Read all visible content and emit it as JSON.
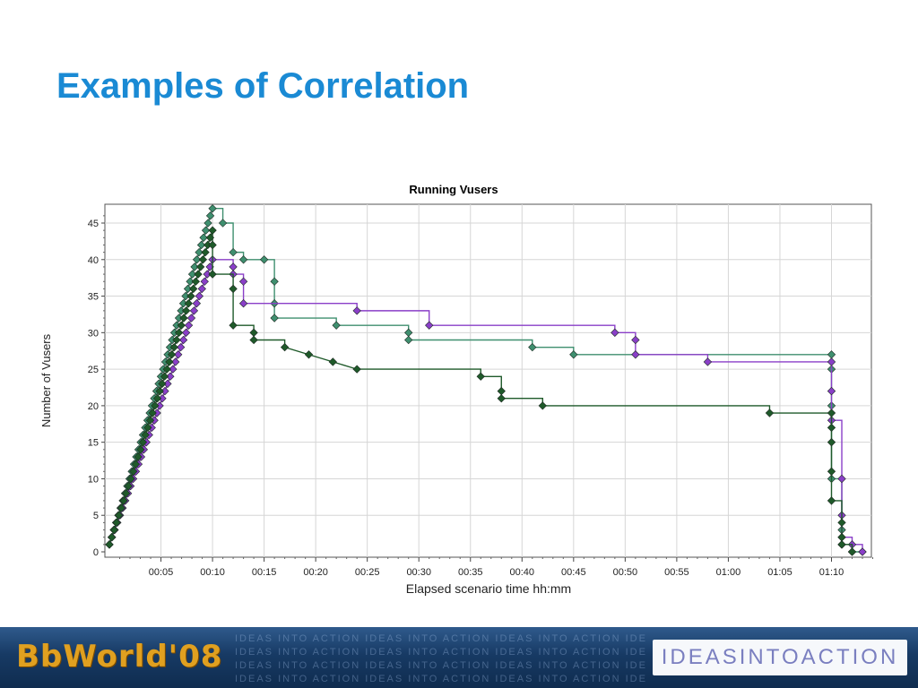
{
  "slide": {
    "title": "Examples of Correlation"
  },
  "footer": {
    "logo_text": "BbWorld'08",
    "pattern_text": "IDEAS INTO ACTION IDEAS INTO ACTION IDEAS INTO ACTION IDEAS INTO ACTION",
    "tagline": "IDEASINTOACTION"
  },
  "chart_data": {
    "type": "line",
    "title": "Running Vusers",
    "xlabel": "Elapsed scenario time hh:mm",
    "ylabel": "Number of Vusers",
    "xlim": [
      "00:00",
      "01:14"
    ],
    "ylim": [
      0,
      47
    ],
    "x_ticks": [
      "00:05",
      "00:10",
      "00:15",
      "00:20",
      "00:25",
      "00:30",
      "00:35",
      "00:40",
      "00:45",
      "00:50",
      "00:55",
      "01:00",
      "01:05",
      "01:10"
    ],
    "y_ticks": [
      "0",
      "5",
      "10",
      "15",
      "20",
      "25",
      "30",
      "35",
      "40",
      "45"
    ],
    "grid": true,
    "legend": "none",
    "step": true,
    "series": [
      {
        "color": "#3f8f6f",
        "points": [
          [
            "00:00",
            1
          ],
          [
            "00:10",
            47
          ],
          [
            "00:11",
            45
          ],
          [
            "00:12",
            41
          ],
          [
            "00:13",
            40
          ],
          [
            "00:15",
            40
          ],
          [
            "00:16",
            37
          ],
          [
            "00:16",
            34
          ],
          [
            "00:16",
            32
          ],
          [
            "00:22",
            31
          ],
          [
            "00:29",
            30
          ],
          [
            "00:29",
            29
          ],
          [
            "00:41",
            28
          ],
          [
            "00:45",
            27
          ],
          [
            "01:10",
            27
          ],
          [
            "01:10",
            25
          ],
          [
            "01:10",
            20
          ],
          [
            "01:10",
            10
          ],
          [
            "01:11",
            3
          ],
          [
            "01:11",
            1
          ],
          [
            "01:12",
            0
          ],
          [
            "01:13",
            0
          ]
        ]
      },
      {
        "color": "#8a3fc8",
        "points": [
          [
            "00:00",
            1
          ],
          [
            "00:10",
            40
          ],
          [
            "00:12",
            39
          ],
          [
            "00:12",
            38
          ],
          [
            "00:13",
            37
          ],
          [
            "00:13",
            34
          ],
          [
            "00:24",
            33
          ],
          [
            "00:31",
            31
          ],
          [
            "00:49",
            30
          ],
          [
            "00:51",
            29
          ],
          [
            "00:51",
            27
          ],
          [
            "00:58",
            26
          ],
          [
            "01:10",
            26
          ],
          [
            "01:10",
            22
          ],
          [
            "01:10",
            18
          ],
          [
            "01:11",
            10
          ],
          [
            "01:11",
            5
          ],
          [
            "01:11",
            2
          ],
          [
            "01:12",
            1
          ],
          [
            "01:13",
            0
          ]
        ]
      },
      {
        "color": "#1f5a2a",
        "points": [
          [
            "00:00",
            1
          ],
          [
            "00:10",
            44
          ],
          [
            "00:10",
            42
          ],
          [
            "00:10",
            38
          ],
          [
            "00:12",
            36
          ],
          [
            "00:12",
            31
          ],
          [
            "00:14",
            30
          ],
          [
            "00:14",
            29
          ],
          [
            "00:17",
            28
          ],
          [
            "00:24",
            25
          ],
          [
            "00:36",
            24
          ],
          [
            "00:38",
            22
          ],
          [
            "00:38",
            21
          ],
          [
            "00:42",
            20
          ],
          [
            "01:04",
            19
          ],
          [
            "01:10",
            19
          ],
          [
            "01:10",
            17
          ],
          [
            "01:10",
            15
          ],
          [
            "01:10",
            11
          ],
          [
            "01:10",
            7
          ],
          [
            "01:11",
            4
          ],
          [
            "01:11",
            2
          ],
          [
            "01:11",
            1
          ],
          [
            "01:12",
            0
          ]
        ]
      }
    ]
  }
}
